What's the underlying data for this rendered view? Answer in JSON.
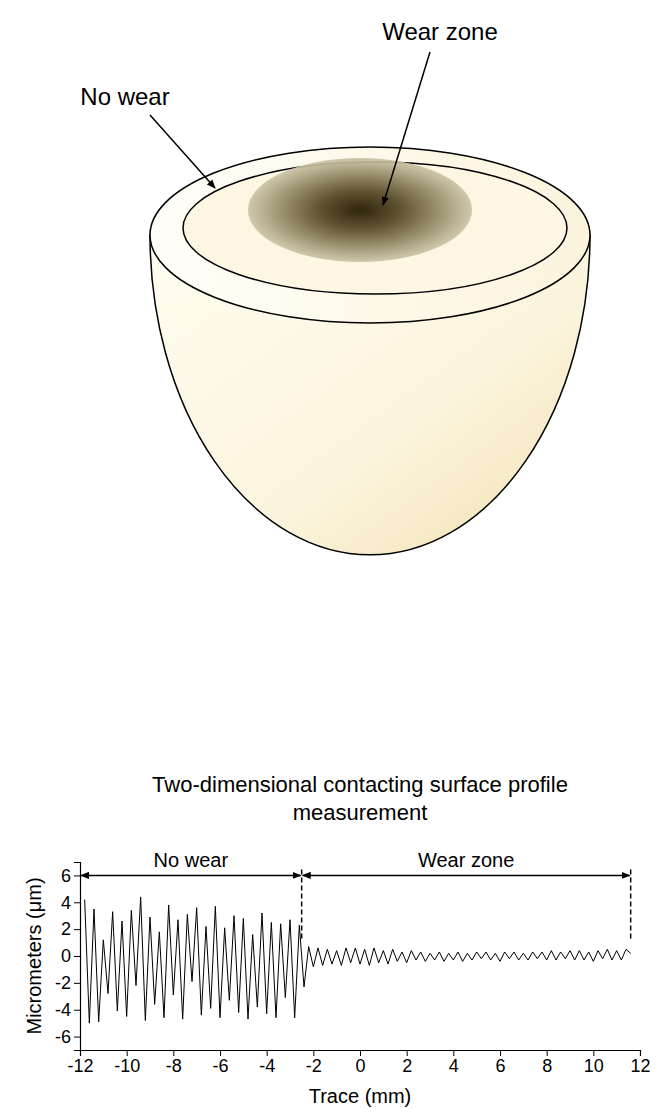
{
  "diagram": {
    "no_wear_label": "No wear",
    "wear_zone_label": "Wear zone"
  },
  "chart_data": {
    "type": "line",
    "title": "Two-dimensional contacting surface profile measurement",
    "x_label": "Trace (mm)",
    "y_label": "Micrometers (μm)",
    "xlim": [
      -12,
      12
    ],
    "xticks": [
      -12,
      -10,
      -8,
      -6,
      -4,
      -2,
      0,
      2,
      4,
      6,
      8,
      10,
      12
    ],
    "ylim": [
      -7,
      7
    ],
    "yticks": [
      -6,
      -4,
      -2,
      0,
      2,
      4,
      6
    ],
    "grid": false,
    "x": [
      -11.8,
      -11.6,
      -11.4,
      -11.2,
      -11.0,
      -10.8,
      -10.6,
      -10.4,
      -10.2,
      -10.0,
      -9.8,
      -9.6,
      -9.4,
      -9.2,
      -9.0,
      -8.8,
      -8.6,
      -8.4,
      -8.2,
      -8.0,
      -7.8,
      -7.6,
      -7.4,
      -7.2,
      -7.0,
      -6.8,
      -6.6,
      -6.4,
      -6.2,
      -6.0,
      -5.8,
      -5.6,
      -5.4,
      -5.2,
      -5.0,
      -4.8,
      -4.6,
      -4.4,
      -4.2,
      -4.0,
      -3.8,
      -3.6,
      -3.4,
      -3.2,
      -3.0,
      -2.8,
      -2.6,
      -2.4,
      -2.2,
      -2.0,
      -1.8,
      -1.6,
      -1.4,
      -1.2,
      -1.0,
      -0.8,
      -0.6,
      -0.4,
      -0.2,
      0.0,
      0.2,
      0.4,
      0.6,
      0.8,
      1.0,
      1.2,
      1.4,
      1.6,
      1.8,
      2.0,
      2.2,
      2.4,
      2.6,
      2.8,
      3.0,
      3.2,
      3.4,
      3.6,
      3.8,
      4.0,
      4.2,
      4.4,
      4.6,
      4.8,
      5.0,
      5.2,
      5.4,
      5.6,
      5.8,
      6.0,
      6.2,
      6.4,
      6.6,
      6.8,
      7.0,
      7.2,
      7.4,
      7.6,
      7.8,
      8.0,
      8.2,
      8.4,
      8.6,
      8.8,
      9.0,
      9.2,
      9.4,
      9.6,
      9.8,
      10.0,
      10.2,
      10.4,
      10.6,
      10.8,
      11.0,
      11.2,
      11.4,
      11.6
    ],
    "series": [
      {
        "type": "line",
        "color": "#000000",
        "line_style": "solid",
        "values": [
          4.2,
          -5.0,
          3.5,
          -4.9,
          1.2,
          -2.8,
          3.3,
          -4.1,
          2.6,
          -4.5,
          3.4,
          -2.2,
          4.4,
          -4.8,
          2.9,
          -3.6,
          1.8,
          -4.6,
          3.8,
          -2.9,
          2.7,
          -4.7,
          3.1,
          -1.9,
          3.6,
          -4.4,
          2.2,
          -3.9,
          3.7,
          -4.6,
          2.1,
          -3.3,
          3.0,
          -4.2,
          2.8,
          -4.7,
          1.6,
          -3.8,
          3.2,
          -4.3,
          2.5,
          -4.6,
          2.4,
          -3.1,
          2.7,
          -4.6,
          2.3,
          -2.3,
          0.7,
          -0.8,
          0.6,
          -0.7,
          0.5,
          -0.6,
          0.4,
          -0.7,
          0.6,
          -0.5,
          0.6,
          -0.6,
          0.5,
          -0.7,
          0.6,
          -0.5,
          0.4,
          -0.6,
          0.5,
          -0.4,
          0.3,
          -0.5,
          0.4,
          -0.3,
          0.3,
          -0.4,
          0.2,
          -0.3,
          0.3,
          -0.4,
          0.2,
          -0.3,
          0.3,
          -0.4,
          0.2,
          -0.3,
          0.3,
          -0.2,
          0.3,
          -0.3,
          0.2,
          -0.4,
          0.3,
          -0.2,
          0.3,
          -0.3,
          0.2,
          -0.3,
          0.3,
          -0.2,
          0.3,
          -0.3,
          0.4,
          -0.3,
          0.3,
          -0.2,
          0.4,
          -0.3,
          0.4,
          -0.3,
          0.3,
          -0.4,
          0.4,
          -0.2,
          0.5,
          -0.3,
          0.4,
          -0.3,
          0.5,
          0.2
        ]
      }
    ],
    "annotations": [
      {
        "text": "No wear",
        "x0": -12,
        "x1": -2.5,
        "y": 6
      },
      {
        "text": "Wear zone",
        "x0": -2.5,
        "x1": 11.6,
        "y": 6
      }
    ],
    "boundaries": [
      {
        "x": -2.5,
        "y0": 1.2,
        "y1": 6
      },
      {
        "x": 11.6,
        "y0": 1.2,
        "y1": 6
      }
    ]
  }
}
